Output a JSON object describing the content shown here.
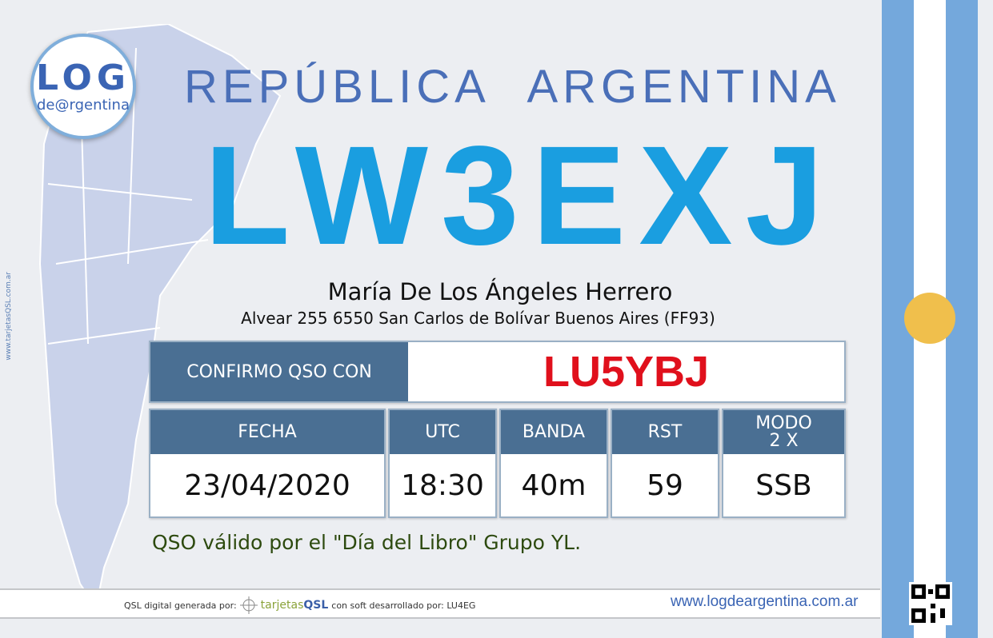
{
  "colors": {
    "header_blue": "#4a6f93",
    "callsign_blue": "#1a9ee0",
    "contact_red": "#e0101c",
    "flag_blue": "#74a8dc",
    "sun": "#f0bf4c"
  },
  "logo": {
    "text_big": "LOG",
    "text_small": "de@rgentina"
  },
  "side_url": "www.tarjetasQSL.com.ar",
  "country": "REPÚBLICA ARGENTINA",
  "callsign": "LW3EXJ",
  "operator_name": "María De Los Ángeles Herrero",
  "address": "Alvear 255 6550 San Carlos de Bolívar Buenos Aires  (FF93)",
  "confirm": {
    "label": "CONFIRMO QSO CON",
    "callsign": "LU5YBJ"
  },
  "qso": {
    "headers": [
      "FECHA",
      "UTC",
      "BANDA",
      "RST",
      "MODO 2 X"
    ],
    "values": [
      "23/04/2020",
      "18:30",
      "40m",
      "59",
      "SSB"
    ]
  },
  "note": "QSO válido por el \"Día del Libro\" Grupo YL.",
  "footer": {
    "generated_by": "QSL digital generada por:",
    "brand_a": "tarjetas",
    "brand_b": "QSL",
    "brand_url": "www.tarjetasQSL.com.ar",
    "soft_by": "con soft desarrollado por: LU4EG",
    "website": "www.logdeargentina.com.ar"
  },
  "icons": {
    "qr": "qr-code-icon",
    "crosshair": "crosshair-icon",
    "sun": "sun-of-may-icon"
  }
}
